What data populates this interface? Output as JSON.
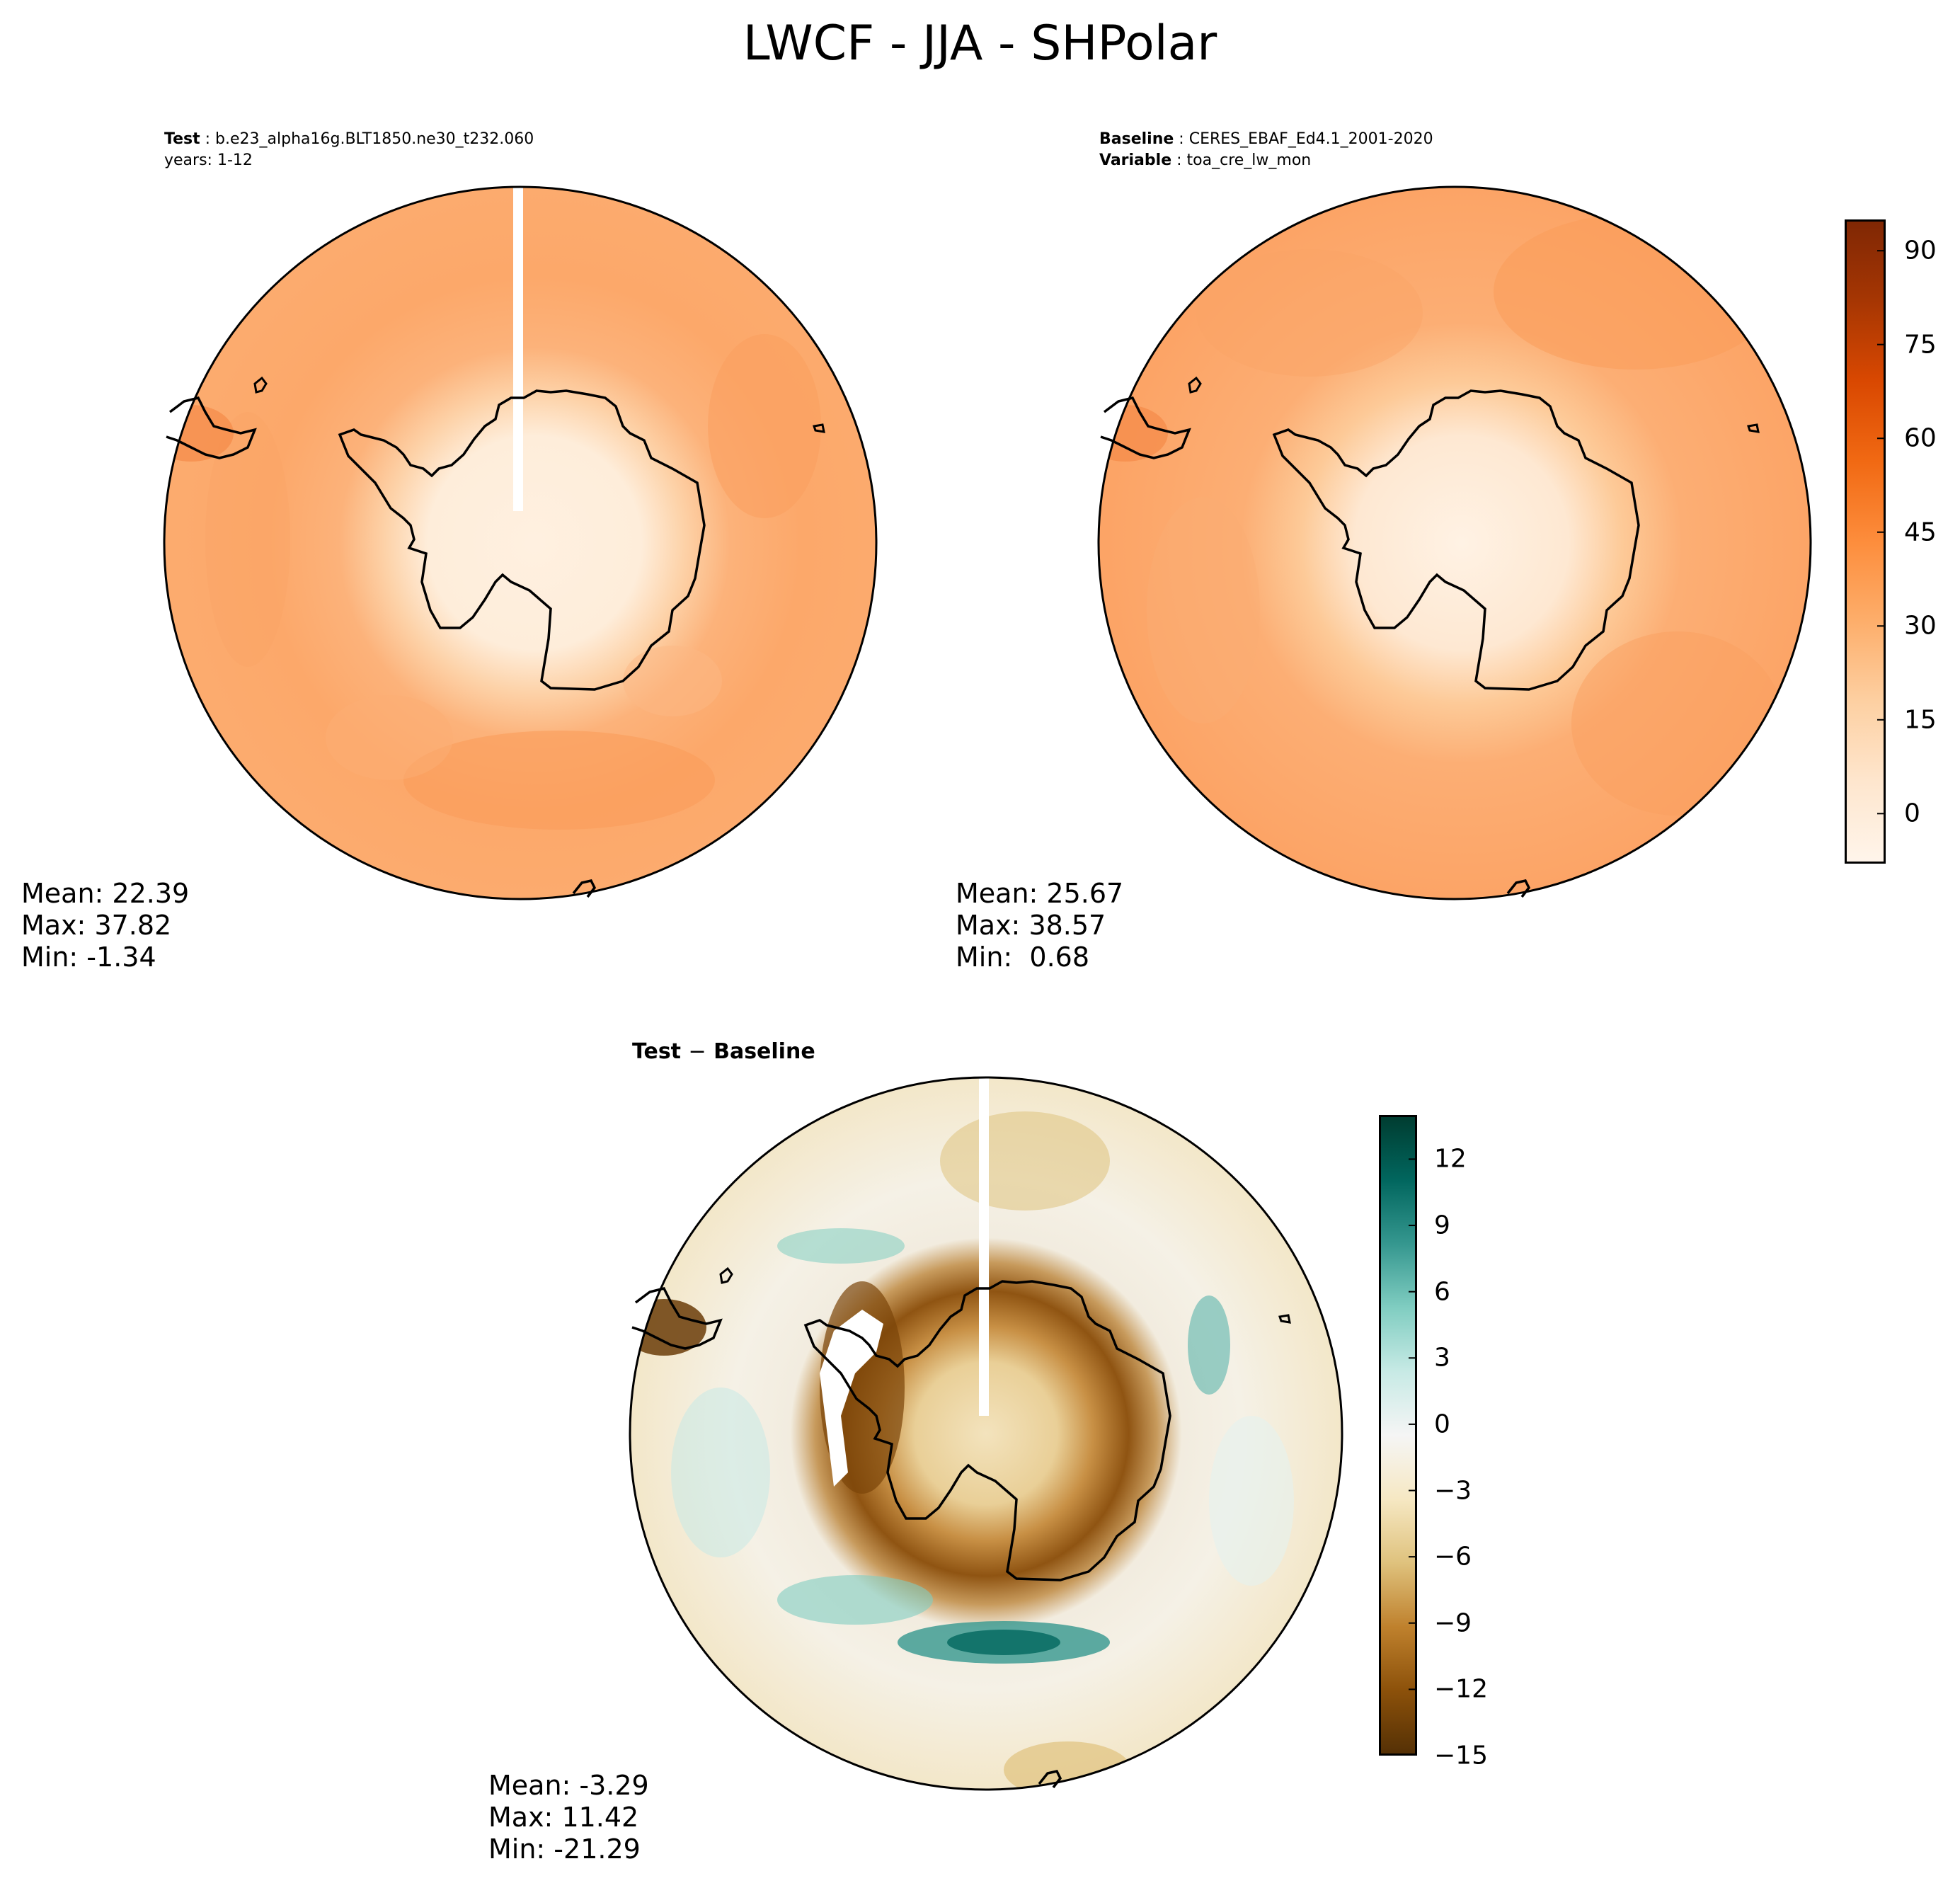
{
  "figure_title": "LWCF - JJA - SHPolar",
  "panels": {
    "test": {
      "line1_key": "Test",
      "line1_value": "b.e23_alpha16g.BLT1850.ne30_t232.060",
      "line2": "years: 1-12",
      "stats": {
        "mean": "Mean: 22.39",
        "max": "Max: 37.82",
        "min": "Min: -1.34"
      }
    },
    "baseline": {
      "line1_key": "Baseline",
      "line1_value": "CERES_EBAF_Ed4.1_2001-2020",
      "line2_key": "Variable",
      "line2_value": "toa_cre_lw_mon",
      "stats": {
        "mean": "Mean: 25.67",
        "max": "Max: 38.57",
        "min": "Min:  0.68"
      }
    },
    "diff": {
      "title_left": "Test",
      "title_sep": "−",
      "title_right": "Baseline",
      "stats": {
        "mean": "Mean: -3.29",
        "max": "Max: 11.42",
        "min": "Min: -21.29"
      }
    }
  },
  "colorbar_main": {
    "colormap": "Oranges",
    "range": [
      -8,
      95
    ],
    "ticks": [
      "0",
      "15",
      "30",
      "45",
      "60",
      "75",
      "90"
    ],
    "tick_values": [
      0,
      15,
      30,
      45,
      60,
      75,
      90
    ],
    "colors": [
      "#fff5eb",
      "#fee6ce",
      "#fdd0a2",
      "#fdae6b",
      "#fd8d3c",
      "#f16913",
      "#d94801",
      "#a63603",
      "#7f2704"
    ]
  },
  "colorbar_diff": {
    "colormap": "BrBG",
    "range": [
      -15,
      14
    ],
    "ticks": [
      "−15",
      "−12",
      "−9",
      "−6",
      "−3",
      "0",
      "3",
      "6",
      "9",
      "12"
    ],
    "tick_values": [
      -15,
      -12,
      -9,
      -6,
      -3,
      0,
      3,
      6,
      9,
      12
    ],
    "colors": [
      "#543005",
      "#8c510a",
      "#bf812d",
      "#dfc27d",
      "#f6e8c3",
      "#f5f5f5",
      "#c7eae5",
      "#80cdc1",
      "#35978f",
      "#01665e",
      "#003c30"
    ]
  }
}
